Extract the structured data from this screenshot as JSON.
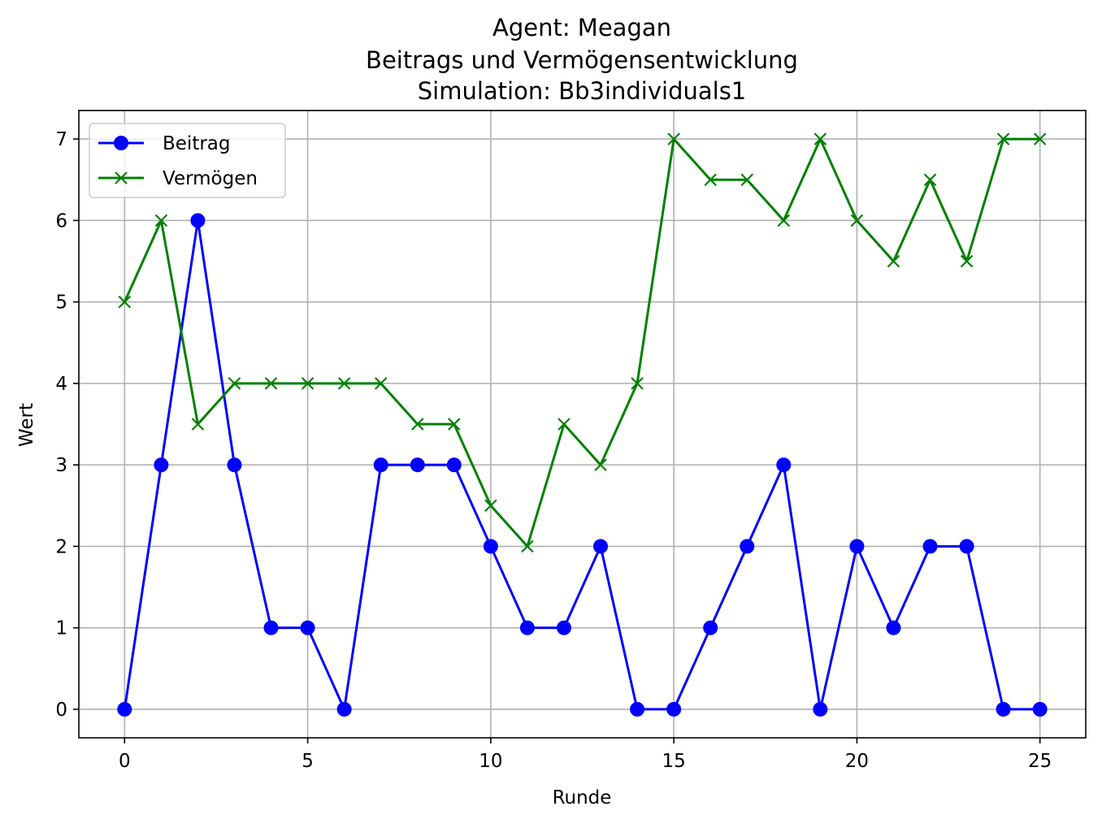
{
  "chart_data": {
    "type": "line",
    "title_lines": [
      "Agent: Meagan",
      "Beitrags und Vermögensentwicklung",
      "Simulation: Bb3individuals1"
    ],
    "xlabel": "Runde",
    "ylabel": "Wert",
    "xlim": [
      -1.25,
      26.25
    ],
    "ylim": [
      -0.35,
      7.35
    ],
    "xticks": [
      0,
      5,
      10,
      15,
      20,
      25
    ],
    "yticks": [
      0,
      1,
      2,
      3,
      4,
      5,
      6,
      7
    ],
    "grid": true,
    "legend_position": "upper-left",
    "x": [
      0,
      1,
      2,
      3,
      4,
      5,
      6,
      7,
      8,
      9,
      10,
      11,
      12,
      13,
      14,
      15,
      16,
      17,
      18,
      19,
      20,
      21,
      22,
      23,
      24,
      25
    ],
    "series": [
      {
        "name": "Beitrag",
        "color": "#0000ff",
        "marker": "circle",
        "values": [
          0,
          3,
          6,
          3,
          1,
          1,
          0,
          3,
          3,
          3,
          2,
          1,
          1,
          2,
          0,
          0,
          1,
          2,
          3,
          0,
          2,
          1,
          2,
          2,
          0,
          0
        ]
      },
      {
        "name": "Vermögen",
        "color": "#008000",
        "marker": "x",
        "values": [
          5,
          6,
          3.5,
          4,
          4,
          4,
          4,
          4,
          3.5,
          3.5,
          2.5,
          2,
          3.5,
          3,
          4,
          7,
          6.5,
          6.5,
          6,
          7,
          6,
          5.5,
          6.5,
          5.5,
          7,
          7
        ]
      }
    ]
  }
}
